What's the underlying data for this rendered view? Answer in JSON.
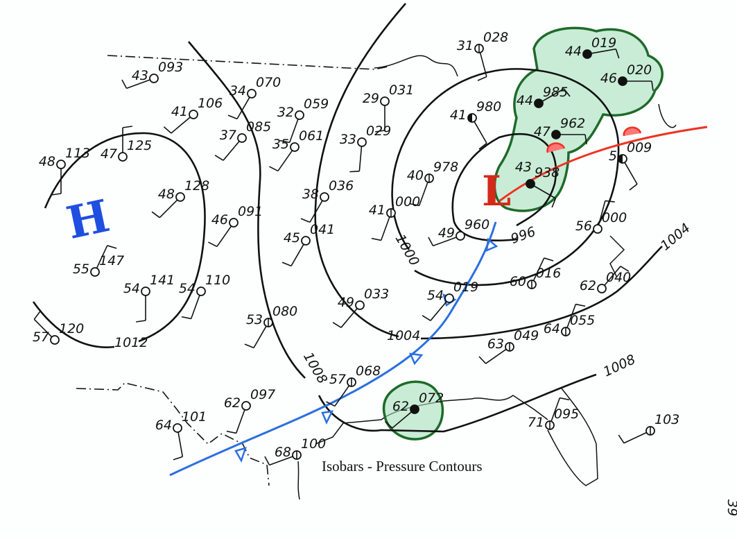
{
  "caption": "Isobars - Pressure Contours",
  "page_number": "39",
  "pressure_centers": {
    "high": "H",
    "low": "L"
  },
  "colors": {
    "high": "#1f4fe0",
    "low": "#d42a1a",
    "cold_front": "#2a6fe0",
    "warm_front": "#ee3322",
    "precip_area": "#1e6b2a",
    "precip_fill": "#8fd6a8",
    "ink": "#111111"
  },
  "isobar_labels": [
    "1012",
    "1008",
    "1008",
    "1004",
    "1004",
    "1000",
    "996"
  ],
  "stations": [
    {
      "temp": "43",
      "pressure": "093",
      "cover": "clear"
    },
    {
      "temp": "41",
      "pressure": "106",
      "cover": "clear"
    },
    {
      "temp": "34",
      "pressure": "070",
      "cover": "clear"
    },
    {
      "temp": "37",
      "pressure": "085",
      "cover": "clear"
    },
    {
      "temp": "32",
      "pressure": "059",
      "cover": "clear"
    },
    {
      "temp": "35",
      "pressure": "061",
      "cover": "clear"
    },
    {
      "temp": "29",
      "pressure": "031",
      "cover": "clear"
    },
    {
      "temp": "33",
      "pressure": "029",
      "cover": "clear"
    },
    {
      "temp": "31",
      "pressure": "028",
      "cover": "scattered"
    },
    {
      "temp": "48",
      "pressure": "113",
      "cover": "clear"
    },
    {
      "temp": "47",
      "pressure": "125",
      "cover": "clear"
    },
    {
      "temp": "48",
      "pressure": "128",
      "cover": "clear"
    },
    {
      "temp": "46",
      "pressure": "091",
      "cover": "clear"
    },
    {
      "temp": "38",
      "pressure": "036",
      "cover": "clear"
    },
    {
      "temp": "41",
      "pressure": "000",
      "cover": "scattered"
    },
    {
      "temp": "40",
      "pressure": "978",
      "cover": "scattered"
    },
    {
      "temp": "41",
      "pressure": "980",
      "cover": "broken"
    },
    {
      "temp": "44",
      "pressure": "019",
      "cover": "overcast"
    },
    {
      "temp": "46",
      "pressure": "020",
      "cover": "overcast"
    },
    {
      "temp": "44",
      "pressure": "985",
      "cover": "overcast"
    },
    {
      "temp": "47",
      "pressure": "962",
      "cover": "overcast"
    },
    {
      "temp": "43",
      "pressure": "938",
      "cover": "overcast"
    },
    {
      "temp": "5",
      "pressure": "009",
      "cover": "broken"
    },
    {
      "temp": "55",
      "pressure": "147",
      "cover": "clear"
    },
    {
      "temp": "54",
      "pressure": "141",
      "cover": "clear"
    },
    {
      "temp": "54",
      "pressure": "110",
      "cover": "clear"
    },
    {
      "temp": "57",
      "pressure": "120",
      "cover": "clear"
    },
    {
      "temp": "45",
      "pressure": "041",
      "cover": "clear"
    },
    {
      "temp": "49",
      "pressure": "033",
      "cover": "clear"
    },
    {
      "temp": "49",
      "pressure": "960",
      "cover": "clear"
    },
    {
      "temp": "56",
      "pressure": "000",
      "cover": "clear"
    },
    {
      "temp": "54",
      "pressure": "019",
      "cover": "clear"
    },
    {
      "temp": "60",
      "pressure": "016",
      "cover": "scattered"
    },
    {
      "temp": "62",
      "pressure": "040",
      "cover": "clear"
    },
    {
      "temp": "53",
      "pressure": "080",
      "cover": "scattered"
    },
    {
      "temp": "63",
      "pressure": "049",
      "cover": "scattered"
    },
    {
      "temp": "64",
      "pressure": "055",
      "cover": "scattered"
    },
    {
      "temp": "57",
      "pressure": "068",
      "cover": "scattered"
    },
    {
      "temp": "62",
      "pressure": "097",
      "cover": "clear"
    },
    {
      "temp": "64",
      "pressure": "101",
      "cover": "clear"
    },
    {
      "temp": "62",
      "pressure": "072",
      "cover": "overcast"
    },
    {
      "temp": "68",
      "pressure": "100",
      "cover": "scattered"
    },
    {
      "temp": "71",
      "pressure": "095",
      "cover": "scattered"
    },
    {
      "temp": "",
      "pressure": "103",
      "cover": "scattered"
    }
  ]
}
